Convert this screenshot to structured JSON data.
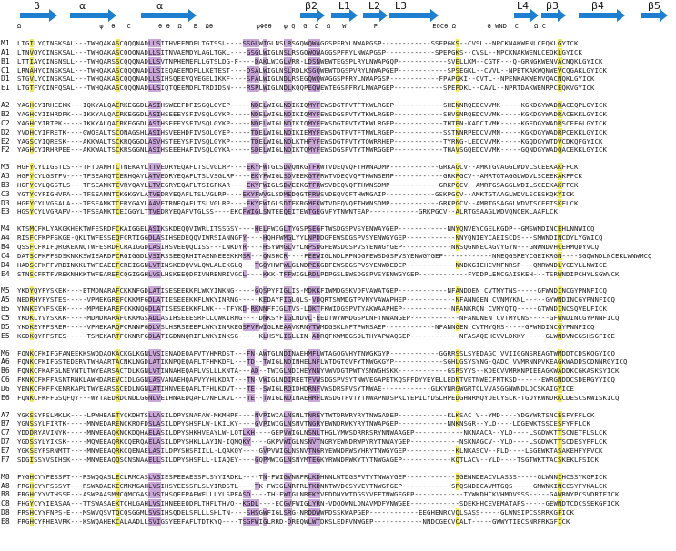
{
  "secondary_structure": [
    {
      "label": "β",
      "type": "strand"
    },
    {
      "label": "α",
      "type": "helix"
    },
    {
      "label": "α",
      "type": "helix"
    },
    {
      "label": "β2",
      "type": "strand"
    },
    {
      "label": "L1",
      "type": "loop"
    },
    {
      "label": "L2",
      "type": "loop"
    },
    {
      "label": "L3",
      "type": "loop"
    },
    {
      "label": "L4",
      "type": "loop"
    },
    {
      "label": "β3",
      "type": "strand"
    },
    {
      "label": "β4",
      "type": "strand"
    },
    {
      "label": "β5",
      "type": "strand"
    }
  ],
  "annotation_line": "Ω                    φ  θ   C       θ θ  Ω   E  Ωθ           φΦΘθ   φ Q  G  Ω  Ω   W       P              EΟCθ Ω        G WND  C    Ω C",
  "annotation_line2": "",
  "colors": {
    "arrow": "#1e7fd0",
    "conserved": "#f2ea5a",
    "similar": "#c9a8d8"
  },
  "groups": [
    [
      {
        "id": "M1",
        "seq": "LTGILYQINSKSAL---TWHQAKASCQQQNADLLSITHVEEMDFLTGTSSL----SSGLWIGLNSLRSGQWQWAGGSPFRYLNWAPGSP------------SSEPGKS--CVSL--NPCKNAKWENLCEQKLGYICK"
      },
      {
        "id": "A1",
        "seq": "LTNVQYQINSKSAL---TWHQAKASCQQQNADLLSITNVAEMDYLAGLTGKL----GSGLWIGLNSLRSGQWQWAGGSPFRYLNWAPGSP------------SPEPGKS--CVSL--NPCKNAKWENLCEQKLGYICK"
      },
      {
        "id": "B1",
        "seq": "LTTIAYQINSNSLL---TWHQARSSCQQQNADLLSVTNPHEMEFLLGTSLDG-F----DAKLWIGLVRR-LDSNWEWTEGSPLRYLNWAPGQP------------SVELLKM--CGTF---Q-GRNGKWENVACNQKLGYICK"
      },
      {
        "id": "C1",
        "seq": "LRNAHYQINSKSAL---TWHQAKASCQQQNADLLSIEQAEEMDFLLKETEST----DSALWIGLNSLRDLKSGQWEWTDGSPVRYLNWAPGEP------------SPSEGKL--CVVL--NPETKAKWQNWEVCQGAKLGYICK"
      },
      {
        "id": "D1",
        "seq": "STGVLYQINSKSAL---TWHQAKASCQQQNADLLSIHSQEEVQYEGELIKKF----SFALWIGLNDLRSEGQWQWAGGSPFRYLNWAPGSP------------FPAPGKI--CVTL--NPENKAKWENVQACNQKLGYICK"
      },
      {
        "id": "E1",
        "seq": "LTGTFYQINFQSAL---TWHQAKASCQQQNADLLSIQTQEEMDFLTRDIDSN----RSPLWIGLNDLKQQPEQWEWTEGSPFRYLNWAPGEP------------SPEPDKL--CAVL--NPRTDAKWENRPCEQKVGYICK"
      }
    ],
    [
      {
        "id": "A2",
        "seq": "YAGHCYIRHEEKK---IQKYALQACRKEGGDLASIHSWEEFDFISGQLGYEP-----NDELWIGLNDIKIQMYFEWSDGTPVTFTKWLRGEP------------SHENNRQEDCVVMK-----KGKDGYWADRACEQPLGYICK"
      },
      {
        "id": "B2",
        "seq": "YAGHCYIIHRDPK---IKKYALQACRKEGGDLASIHSEEEYSFIVSQLGYKP-----NDELWIGLNDIKIQMYFEWSDGSPVTYTKWLRGEP------------SHVSNRQEDCVVMK-----KGKDGYWADRACEKKLGYICK"
      },
      {
        "id": "C2",
        "seq": "YAGHCYIRTPK-----IKKYALQACRKEGGDLASIHSEEEYSFIVSQLGYKP-----NDELWIGLNDIKIQMYFEWSDGTPVTYTKWLRGEP------------THTPN-KADCIVMK-----KGEDGYWADRSCEEGLGYICK"
      },
      {
        "id": "D2",
        "seq": "YVDHCYIFRETK----GWQEALTSCQNAGSHLASIHSVEEHDFIVSQLGYEP-----TDELWIGLNDIKIEMYFEWSDGTPVTFTNWLRGEP------------SSTNNRPEDCVVMN-----KGKDGYWADRPCEKKLGYICK"
      },
      {
        "id": "E2",
        "seq": "YAGSCYIQRESK----AKKWALTSCKRQGGDLASVHSTEEYSFIVSQLGYKP-----TDELWIGLNDLKTHFYFEWSDGTPVTYTQWRRHEP------------TYRNG-LEDCVVMK-----KGQDGYWTDVCDKQFGYICK"
      },
      {
        "id": "F2",
        "seq": "YAGHCYIRHRPEE---AKKWALTSCKRSGGNLASIHSEEEHAFIVSQLGYKA-----SDELWIGLNDIKTQMYFEWSDGSPVTYTNWRGGEP------------THAVSGQEDCVVMK-----GQNDGYWADQACEKKLGYICK"
      }
    ],
    [
      {
        "id": "M3",
        "seq": "HGFYCYLIGSTLS---TFTDANHTCTNEKAYLTTVEDRYEQAFLTSLVGLRP----EKYFWTGLSDVQNKGTFRWTVDEQVQFTHWNADMP------------GRKAGCV--AMKTGVAGGLWDVLSCEEKAKFFCK"
      },
      {
        "id": "A3",
        "seq": "HGFYCYLGSTFV----TFSEANQTCERHQAYLATVEDRYEQAFLTSLVSGLRP----EKYFWIGLSDVEEKGTFRWTVDEQVQFTHWNSEMP------------GRKPGCV--AMRTGTAGGLWDVLSCEEKAKFFCK"
      },
      {
        "id": "B3",
        "seq": "HGFYCYLQGSTLS---TFSEANKTCVRYQAYLLTVEGRYEQAFLTSIGFKAR----EKYFWIGLSDVEEKGTFRWSVDEQVQFTHWNSDMP------------GRKPGCV--AMRTGSAGGLWDILSCEEKAKFFCK"
      },
      {
        "id": "C3",
        "seq": "YGTYCYFIGHVPA---TFSEANNTCKGKGYLATVEDRYEQAFLTSLVGLRP----EKYFWVGLSDMEDQGTFRWSVDEQVQFTHWNGAIP------------GSKPGCV--AMKTGTAAGLWDVLSCESKQKYICK"
      },
      {
        "id": "D3",
        "seq": "HGFYCYLVGSALA---TFSEANKTCERYGAYLAAVETRNEQAFLTSLVGLRP----EKYFWIGLSDTEKRGMFKWTVDEQVQFTHWNSDMP------------GRKPGCV--AMRTGSAGGLWDVTSCEETSKFLCK"
      },
      {
        "id": "E3",
        "seq": "HGSYCYLVGRAPV---TFSEANKTCEIGGYLTTVEDRYEQAFVTGLSS----EKCFWIGLSNTEEQEITEWTGEGVFYTNWNTEAP------------GRKPGCV--ALRTGSAAGLWDVQNCEKLAAFLCK"
      }
    ],
    [
      {
        "id": "M4",
        "seq": "KTSMCFKLYAKGKHEKTWFESRDFCKAIGGELASIKSKDEQQVIWRLITSSGSY----HELFWIGLTYGSPSEGFTWSDGSPVSYENWAYGEP------------NNYQNVEYCGELKGDP--GMSWNDINCEHLNNWICQ"
      },
      {
        "id": "A4",
        "seq": "RISFCFKPFSKGE-QKLTWFESSEQFCRTIGGDLASIHSEDEQQVIWRSIANNGFY----HQHFWMGLYYLNPDDGFEWSDGSPVSYENWGYGEP------------NNYQNIEYCAEISCDS---SMWNDINCDYLYGWICQ"
      },
      {
        "id": "B4",
        "seq": "QSSFCFKIFQRGKEKNQTWFESRDFCRAIGGDLASIHSVEEQQLISS---LNKDYR----HSYWMGLVYLNPSDGFEWSDGSPVSYENWGYGEP------------NNSQGNNECAGVYGYN---GNWNDVHCEHMQDYVCQ"
      },
      {
        "id": "C4",
        "seq": "DATSCFKFFSDSKNKKSWIEARDFCRGIGGDLVSIRSSEEQRHITAENNEEEKKMSR---QNSHCR----FEEWIGLNDLRPNDGFEWSDGSPVSYENWGYGEP------------NNEQGSREYCGEIKRGN----SGQWNDLNCEKLWNWMCQ"
      },
      {
        "id": "D4",
        "seq": "HADSCFKFFVRDINKKLTWFEAEEFCREIGGNLVTINSKEDQVVLQWLALEKGLQ---TGQYHWFWLGLNDPEKGDFEWSDGSPVSYENWDEDEP------------NNDKGIEHCVMFNRSP---QMRWNDLYCEYLLNWICE"
      },
      {
        "id": "E4",
        "seq": "STNSCFRTFVREKNHKKTWFEAREFCQGIGGHLVSLHSKEEQDFIVNRENRIVGCL----KKK-TFFWIGLRDLPDPGSLEWSDGSPVSYENWGYGEP------------FYDDPLENCGAISKEH---TSRWNDIPCHYLSGWVCK"
      }
    ],
    [
      {
        "id": "M5",
        "seq": "YKDYQYFYSKEK----ETMDNARAFCKKNFGDLATISESEEKKFLWKYINKNG-----GQSPYFIGLIS-MDKKFIWMDGSKVDFVAWATGEP------------NFANDDEN CVTMYTNS-----GFWNDINCGYPNNFICQ"
      },
      {
        "id": "A5",
        "seq": "NEDRHYFYSTES-----VPMEKGREFCKKMFGDLATIESEEEKKFLWKYINRNG-----KEDAYFIGLQLS-VDQRTSWMDGTPVNYVAWAPHEP------------NFANNGEN CVNMYKNL-----GYWNDINCGYPNNFICQ"
      },
      {
        "id": "B5",
        "seq": "YNNKEYYFSKEK-----MPMEKAREFCKKNQGDLATISESEEKKFLWK---TFYKD-RKNNFFIGLTVS-LDKTFKWIDGSPVTYAKWAAPHEP------------NFANKRQN CVMYQTQ-----GTWNDINCSQVELFICK"
      },
      {
        "id": "C5",
        "seq": "YKDKLYVYSKKK-----MDMDNARAFCKKMGSADLASIHSEEESRFLLQWKIRNG----DNKSYFIGLNDVL-EEDTWYWMDGSPLNFTNWANGEP------------NFANDNEN CVTMYQNS-----GFWNDINCGYPNNFICQ"
      },
      {
        "id": "D5",
        "seq": "YKDKEYFFSRER-----VPMEKARQFCRNNFGDLVSLHSRSEEEFLWKYINRKEGSFVFWIGLREAAVKRNYTWMDGSKLNFTPWNSAEP------------NFANNGEN CVTMYQNS-----GFWNDINCGYPNNFICQ"
      },
      {
        "id": "E5",
        "seq": "KGDKQYFFSTES-----TSMEKARTFCKNRFGDLATIGDNNQRIFLWKYINKSG-----KLHSYLIGLLIN-ADRQFKWMDGSDLTHYAPWAQGEP------------NFASAQEHCVVLDKKY-----GLWNDVNCGSHSGFICE"
      }
    ],
    [
      {
        "id": "M6",
        "seq": "FQNKCFKIFGFANEEKKSWQDAQKACKGLKGNLVSIENAQEQAFVTYHMRDST---FN-AWTGLNDINAEHMFLWTAGQGVHYTNWGKGYP------------GGRRSSLSYEDAGC VVIIGGNSREAGTWMDDTCDSKQGYICQ"
      },
      {
        "id": "A6",
        "seq": "FQNKCFKIFGSTEDERVTWHAARTACNKLNGDLATIKNPQEQAFLTFHMKDFL---TD--TWIGLNDINHELNFLWTDGTGVFYTNWGKGYP------------SGHLGSYSYNG-QADC VVMRNNPVKEAGKWADDSCDNNRGYICQ"
      },
      {
        "id": "B6",
        "seq": "FQNKCFKAFGLNEYNTLTWYEARSACTDLKGNLVTINNAHEQAFLVSLLLKNTA---AD--TWIGLNDIHEYNNYVWVDGTPWTYSNWGHSKK------------GSRSYYS--KDECVVMRKNPIEEAGKWADDKCGKASKSYICK"
      },
      {
        "id": "C6",
        "seq": "FKNKCFKFFASNTRNKLAWHDAREVCIDLGGNLASVANAEHQAFVYYHLKDAT---TN-VWIGLNDIREETFVWSDGSPVSYTNWVEGAPETKQSFFDYYEYELLEDNTVETNWECFNTKSD------EWRGNDDCSDERGYYICQ"
      },
      {
        "id": "D6",
        "seq": "YENKCFKFFKENRKAPLTWYEARSSCEDLNGNLATIHNVEEQAFLTFHLKDVT---TE--SWIGLRDIDHDRNFVWSDRSPVSYTNWAE------------GLKYNRGWGRTCLVVASGGNWNDLDCSKAIGYICE"
      },
      {
        "id": "E6",
        "seq": "FQNKCFKFFGSQFQY---WYTAEDRDCNDLGGNLVEIHNAEDQAFLVNHLKVL---TE--TWIGLNDINAEHMFLWSDGTPVTYTNWAPNDSPKLYEPILYDSLHPEDGHNRMQYDECYSLK-TGDYKWNDRKCDESCSKWISKICQ"
      }
    ],
    [
      {
        "id": "A7",
        "seq": "YGKSSYFSLMKLK----LPWHEAETYCKDHTSLLASILDPYSNAFAW-MKMHPF----NVPIWIALNSNLTNREYTWTDRWRYRYTNWGADEP------------KLKSAC V--YMD----YDGYWRTSNCESFYFFLCK"
      },
      {
        "id": "B7",
        "seq": "YGNSSYLFIRTK-----MNWEDARENCKRQFDSLASILDPYSHSFLW-LKILKY----GVPIWIGLNSNVTNGRYEWNDRWKYRYTNWAPGEP------------NNKNSGR--YLD----LDGEWKTSSCESFYFFLCK"
      },
      {
        "id": "C7",
        "seq": "YDDDRYAVINYK-----MNWEEAQKNCKDQHAELASILDPYSHKHVEAYLW-LQTLKH----GEPVWIGLNSNLTHGLYMWSDRRRSRYNNWAAGEP------------NKNAACA--YLD----LSGDWKTTSCNETFLSLCK"
      },
      {
        "id": "D7",
        "seq": "YGDSSYLYIKSK-----MQWEEAQRKCQERQAELASILDPYSHKLLAYIN-IQMQKY----GKPVWIGLNSNVTNGRYEWNDRWPYRYTNWAYGEP------------NSKNAGCV--YLD----LSGDWKTTSCDESYFFLCK"
      },
      {
        "id": "E7",
        "seq": "YGKSEYFSRNMTT----MNWEEAQRKCQENAELASILDPYSHSFIILL-LQAKQY----GVPVWIGLNSNVTNGRYEWNDRWSYHRYTNWGYGEP------------KLNKASCV--FLD----LSGEWKTASAKEHFYFVCK"
      },
      {
        "id": "F7",
        "seq": "SDGISSYVSIHSK----MNWEEAQQSCNSNAAELLSILDPYSHSFLL-LIAQEY----GQPMWIGLNSNYMTEGKYRWNDRWKYTYTNWGAGEP------------KQTLACV--YLD----TSGTWKTTACSKEKLFSICK"
      }
    ],
    [
      {
        "id": "M8",
        "seq": "FYGHCYYFESSFT---RSWQQASLECLRMCASLVSIESPEEAESSFLSYYIRDKL----TN-FWIGVNRFRLKDHNNLWTDGSFVTYTNWAYGEP------------SGENNDEACVLASSS-----GLWNNIHCSSYKGFICK"
      },
      {
        "id": "A8",
        "seq": "FRGHCYYFSSSYT---RSWADAEKECMKMGAHLVSIHSYEESSFLSLYIRDSTL----TK-FWIGLNRFRLTKDNNTWVDGSYVEYTNWGFGEP------------SPQSNDECAVMTGQS-----GMWNKINCCSYFYKALCK"
      },
      {
        "id": "B8",
        "seq": "FRGHCYYVTHSSE---ASWPAASMMCQMCGASLVSIHSQEEPAEWFLLLYLSPFASD----TH-FWIGLNRFKYVEDDNYWTDGSYVEFTNWGFGEP------------TYWKDHCKVHMDVSSS-----GAWRNYPCSVDRTFICK"
      },
      {
        "id": "C8",
        "seq": "FHGYCYYIEASAA---TTSWASAEKTCHLGAHLVSIHNEEEQDFLTHFLTHVQ--KGDL----ECGVFWIGLYRN-VDQQWNLDNAVMDFVNWGEE------------SDEKHHCEVEMATAPS-----GEWNDTCDCSSEKGFICK"
      },
      {
        "id": "D8",
        "seq": "FRSHCYYFNPS-E---MSWVQSVTQCQSGGMLSVSIHSQDELSFLLLSHLTN----SHSGWFIGLSRG-NRDDWWPDSSKWAPGEP------------EEGHENRCVQLSASS-----GLWNSIPCSSRRKGFICK"
      },
      {
        "id": "E8",
        "seq": "FRGHCYFHEAVRK---KSWQAHEKCALAADLLSVIGSYEEFAFLTDTKYQ----TSGFWIGLRRD-DREQWLWTDKSLEDFVNWGEP------------NNDCGECVCALT-----GWWYTIECSNRFRKGFICK"
      }
    ]
  ]
}
